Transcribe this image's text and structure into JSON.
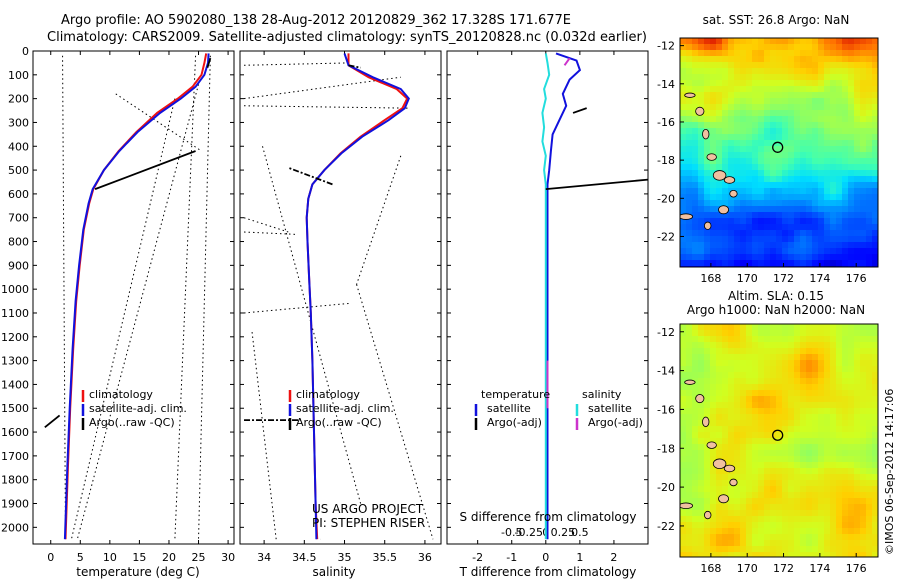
{
  "header": {
    "line1": "Argo profile: AO 5902080_138 28-Aug-2012 20120829_362 17.328S 171.677E",
    "line2": "Climatology: CARS2009. Satellite-adjusted climatology: synTS_20120828.nc (0.032d earlier)"
  },
  "colors": {
    "climatology": "#ee1111",
    "satellite": "#1111dd",
    "argo": "#000000",
    "s_satellite": "#22dddd",
    "s_argo": "#cc33cc"
  },
  "depth_ticks": [
    0,
    100,
    200,
    300,
    400,
    500,
    600,
    700,
    800,
    900,
    1000,
    1100,
    1200,
    1300,
    1400,
    1500,
    1600,
    1700,
    1800,
    1900,
    2000
  ],
  "chart_data": [
    {
      "type": "line",
      "id": "temperature",
      "xlabel": "temperature (deg C)",
      "xlim": [
        -3,
        31
      ],
      "ylim": [
        0,
        2070
      ],
      "xticks": [
        0,
        5,
        10,
        15,
        20,
        25,
        30
      ],
      "legend": [
        "climatology",
        "satellite-adj. clim.",
        "Argo(..raw -QC)"
      ],
      "series": [
        {
          "name": "climatology",
          "points": [
            [
              26.3,
              10
            ],
            [
              26.0,
              50
            ],
            [
              25.5,
              100
            ],
            [
              24.0,
              150
            ],
            [
              21.5,
              200
            ],
            [
              18.0,
              260
            ],
            [
              14.5,
              340
            ],
            [
              11.5,
              420
            ],
            [
              9.0,
              500
            ],
            [
              7.2,
              580
            ],
            [
              6.5,
              640
            ],
            [
              5.6,
              750
            ],
            [
              4.9,
              900
            ],
            [
              4.3,
              1050
            ],
            [
              3.8,
              1250
            ],
            [
              3.3,
              1500
            ],
            [
              2.9,
              1750
            ],
            [
              2.5,
              2050
            ]
          ]
        },
        {
          "name": "satellite",
          "points": [
            [
              26.7,
              10
            ],
            [
              26.6,
              50
            ],
            [
              26.0,
              100
            ],
            [
              24.5,
              150
            ],
            [
              22.0,
              200
            ],
            [
              18.5,
              260
            ],
            [
              14.7,
              340
            ],
            [
              11.6,
              420
            ],
            [
              9.0,
              500
            ],
            [
              7.1,
              580
            ],
            [
              6.4,
              640
            ],
            [
              5.5,
              750
            ],
            [
              4.8,
              900
            ],
            [
              4.2,
              1050
            ],
            [
              3.7,
              1250
            ],
            [
              3.2,
              1500
            ],
            [
              2.8,
              1750
            ],
            [
              2.4,
              2050
            ]
          ]
        }
      ],
      "argo_segments": [
        [
          [
            27.0,
            30
          ],
          [
            26.5,
            70
          ]
        ],
        [
          [
            24.5,
            420
          ],
          [
            7.5,
            580
          ]
        ],
        [
          [
            -1.0,
            1580
          ],
          [
            1.5,
            1530
          ]
        ]
      ],
      "dotted_lines": [
        [
          [
            2.0,
            20
          ],
          [
            2.5,
            2050
          ]
        ],
        [
          [
            27.0,
            20
          ],
          [
            25.0,
            2050
          ]
        ],
        [
          [
            24.5,
            20
          ],
          [
            21.0,
            2050
          ]
        ],
        [
          [
            11.0,
            180
          ],
          [
            25.5,
            420
          ]
        ],
        [
          [
            25.0,
            140
          ],
          [
            4.5,
            2050
          ]
        ],
        [
          [
            21.0,
            200
          ],
          [
            3.5,
            2050
          ]
        ]
      ]
    },
    {
      "type": "line",
      "id": "salinity",
      "xlabel": "salinity",
      "xlim": [
        33.7,
        36.2
      ],
      "ylim": [
        0,
        2070
      ],
      "xticks": [
        34,
        34.5,
        35,
        35.5,
        36
      ],
      "legend": [
        "climatology",
        "satellite-adj. clim.",
        "Argo(..raw -QC)"
      ],
      "annotation": [
        "US ARGO PROJECT",
        "PI: STEPHEN RISER"
      ],
      "series": [
        {
          "name": "climatology",
          "points": [
            [
              35.05,
              10
            ],
            [
              35.05,
              60
            ],
            [
              35.3,
              110
            ],
            [
              35.65,
              160
            ],
            [
              35.78,
              200
            ],
            [
              35.72,
              240
            ],
            [
              35.5,
              290
            ],
            [
              35.2,
              360
            ],
            [
              34.95,
              430
            ],
            [
              34.75,
              500
            ],
            [
              34.6,
              560
            ],
            [
              34.55,
              620
            ],
            [
              34.53,
              700
            ],
            [
              34.54,
              800
            ],
            [
              34.56,
              950
            ],
            [
              34.58,
              1100
            ],
            [
              34.6,
              1300
            ],
            [
              34.62,
              1600
            ],
            [
              34.64,
              1900
            ],
            [
              34.66,
              2050
            ]
          ]
        },
        {
          "name": "satellite",
          "points": [
            [
              35.0,
              10
            ],
            [
              35.05,
              60
            ],
            [
              35.35,
              110
            ],
            [
              35.7,
              160
            ],
            [
              35.8,
              200
            ],
            [
              35.75,
              240
            ],
            [
              35.55,
              290
            ],
            [
              35.22,
              360
            ],
            [
              34.96,
              430
            ],
            [
              34.75,
              500
            ],
            [
              34.6,
              560
            ],
            [
              34.55,
              620
            ],
            [
              34.53,
              700
            ],
            [
              34.54,
              800
            ],
            [
              34.56,
              950
            ],
            [
              34.58,
              1100
            ],
            [
              34.6,
              1300
            ],
            [
              34.62,
              1600
            ],
            [
              34.64,
              1900
            ],
            [
              34.65,
              2050
            ]
          ]
        }
      ],
      "argo_segments": [
        [
          [
            34.85,
            560
          ],
          [
            34.3,
            490
          ]
        ],
        [
          [
            33.75,
            1550
          ],
          [
            34.45,
            1550
          ]
        ],
        [
          [
            35.05,
            60
          ],
          [
            35.2,
            70
          ]
        ]
      ],
      "dotted_lines": [
        [
          [
            33.75,
            60
          ],
          [
            35.05,
            50
          ]
        ],
        [
          [
            33.75,
            200
          ],
          [
            35.7,
            110
          ]
        ],
        [
          [
            33.75,
            230
          ],
          [
            35.8,
            240
          ]
        ],
        [
          [
            33.75,
            1100
          ],
          [
            35.05,
            1060
          ]
        ],
        [
          [
            33.75,
            760
          ],
          [
            34.4,
            770
          ]
        ],
        [
          [
            33.75,
            700
          ],
          [
            34.3,
            760
          ]
        ],
        [
          [
            33.98,
            400
          ],
          [
            35.2,
            1900
          ]
        ],
        [
          [
            35.7,
            440
          ],
          [
            35.15,
            980
          ]
        ],
        [
          [
            35.15,
            980
          ],
          [
            36.1,
            2050
          ]
        ],
        [
          [
            33.85,
            1180
          ],
          [
            34.15,
            2050
          ]
        ],
        [
          [
            34.7,
            2050
          ],
          [
            34.7,
            2050
          ]
        ]
      ]
    },
    {
      "type": "line",
      "id": "difference",
      "xlabel": "T difference from climatology",
      "title_bottom": "S difference from climatology",
      "xlim": [
        -2.9,
        3.0
      ],
      "ylim": [
        0,
        2070
      ],
      "xticks": [
        -2,
        -1,
        0,
        1,
        2
      ],
      "s_ticks": [
        "-0.5",
        "-0.25",
        "0",
        "0.25",
        "0.5"
      ],
      "legend_t": [
        "temperature",
        "satellite",
        "Argo(-adj)"
      ],
      "legend_s": [
        "salinity",
        "satellite",
        "Argo(-adj)"
      ],
      "series": [
        {
          "name": "T satellite",
          "points": [
            [
              0.3,
              10
            ],
            [
              0.9,
              40
            ],
            [
              1.0,
              80
            ],
            [
              0.7,
              120
            ],
            [
              0.5,
              180
            ],
            [
              0.6,
              230
            ],
            [
              0.4,
              290
            ],
            [
              0.2,
              350
            ],
            [
              0.15,
              420
            ],
            [
              0.1,
              500
            ],
            [
              0.05,
              560
            ],
            [
              0.05,
              650
            ],
            [
              0.05,
              800
            ],
            [
              0.05,
              1000
            ],
            [
              0.05,
              1300
            ],
            [
              0.05,
              1600
            ],
            [
              0.05,
              2050
            ]
          ]
        },
        {
          "name": "S satellite",
          "points": [
            [
              0.0,
              10
            ],
            [
              0.05,
              50
            ],
            [
              0.1,
              100
            ],
            [
              -0.05,
              160
            ],
            [
              0.0,
              200
            ],
            [
              -0.1,
              260
            ],
            [
              -0.05,
              320
            ],
            [
              -0.1,
              380
            ],
            [
              0.0,
              440
            ],
            [
              -0.05,
              500
            ],
            [
              0.0,
              560
            ],
            [
              0.0,
              700
            ],
            [
              0.0,
              900
            ],
            [
              0.0,
              1200
            ],
            [
              0.0,
              1500
            ],
            [
              0.0,
              2050
            ]
          ]
        }
      ],
      "argo_segments": [
        [
          [
            0.0,
            580
          ],
          [
            3.0,
            540
          ]
        ],
        [
          [
            0.8,
            260
          ],
          [
            1.2,
            240
          ]
        ]
      ],
      "argo_s_segments": [
        [
          [
            0.55,
            60
          ],
          [
            0.7,
            30
          ]
        ],
        [
          [
            0.05,
            1300
          ],
          [
            0.05,
            1500
          ]
        ]
      ]
    },
    {
      "type": "heatmap",
      "id": "sst_map",
      "title": "sat. SST: 26.8 Argo: NaN",
      "xticks": [
        168,
        170,
        172,
        174,
        176
      ],
      "yticks": [
        -12,
        -14,
        -16,
        -18,
        -20,
        -22
      ],
      "xlim": [
        166.3,
        177.2
      ],
      "ylim": [
        -23.6,
        -11.6
      ],
      "marker": [
        171.677,
        -17.328
      ]
    },
    {
      "type": "heatmap",
      "id": "sla_map",
      "title": "Altim. SLA: 0.15",
      "subtitle": "Argo h1000: NaN h2000: NaN",
      "xticks": [
        168,
        170,
        172,
        174,
        176
      ],
      "yticks": [
        -12,
        -14,
        -16,
        -18,
        -20,
        -22
      ],
      "xlim": [
        166.3,
        177.2
      ],
      "ylim": [
        -23.6,
        -11.6
      ],
      "marker": [
        171.677,
        -17.328
      ]
    }
  ],
  "timestamp": "©IMOS 06-Sep-2012 14:17:06"
}
